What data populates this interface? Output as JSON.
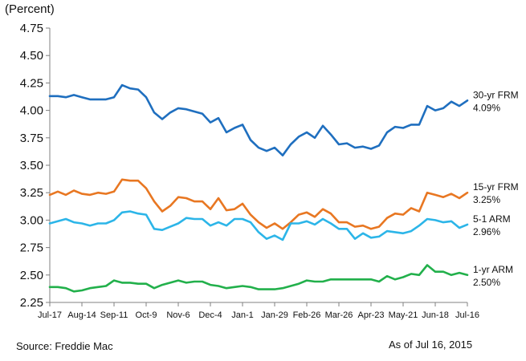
{
  "chart_data": {
    "type": "line",
    "ylabel": "(Percent)",
    "source": "Source: Freddie Mac",
    "as_of": "As of Jul 16, 2015",
    "ylim": [
      2.25,
      4.75
    ],
    "yticks": [
      "4.75",
      "4.50",
      "4.25",
      "4.00",
      "3.75",
      "3.50",
      "3.25",
      "3.00",
      "2.75",
      "2.50",
      "2.25"
    ],
    "xticks": [
      "Jul-17",
      "Aug-14",
      "Sep-11",
      "Oct-9",
      "Nov-6",
      "Dec-4",
      "Jan-1",
      "Jan-29",
      "Feb-26",
      "Mar-26",
      "Apr-23",
      "May-21",
      "Jun-18",
      "Jul-16"
    ],
    "grid": false,
    "series": [
      {
        "name": "30-yr FRM",
        "end_label": "4.09%",
        "color": "#1f6fbf",
        "values": [
          4.13,
          4.13,
          4.12,
          4.14,
          4.12,
          4.1,
          4.1,
          4.1,
          4.12,
          4.23,
          4.2,
          4.19,
          4.12,
          3.98,
          3.92,
          3.98,
          4.02,
          4.01,
          3.99,
          3.97,
          3.89,
          3.93,
          3.8,
          3.84,
          3.87,
          3.73,
          3.66,
          3.63,
          3.66,
          3.59,
          3.69,
          3.76,
          3.8,
          3.75,
          3.86,
          3.78,
          3.69,
          3.7,
          3.66,
          3.67,
          3.65,
          3.68,
          3.8,
          3.85,
          3.84,
          3.87,
          3.87,
          4.04,
          4.0,
          4.02,
          4.08,
          4.04,
          4.09
        ]
      },
      {
        "name": "15-yr FRM",
        "end_label": "3.25%",
        "color": "#e87722",
        "values": [
          3.23,
          3.26,
          3.23,
          3.27,
          3.24,
          3.23,
          3.25,
          3.24,
          3.26,
          3.37,
          3.36,
          3.36,
          3.29,
          3.17,
          3.08,
          3.13,
          3.21,
          3.2,
          3.17,
          3.17,
          3.1,
          3.2,
          3.09,
          3.1,
          3.15,
          3.05,
          2.98,
          2.93,
          2.97,
          2.92,
          2.98,
          3.05,
          3.07,
          3.03,
          3.1,
          3.06,
          2.98,
          2.98,
          2.94,
          2.95,
          2.92,
          2.94,
          3.02,
          3.06,
          3.05,
          3.11,
          3.08,
          3.25,
          3.23,
          3.21,
          3.24,
          3.2,
          3.25
        ]
      },
      {
        "name": "5-1 ARM",
        "end_label": "2.96%",
        "color": "#2cb5e8",
        "values": [
          2.97,
          2.99,
          3.01,
          2.98,
          2.97,
          2.95,
          2.97,
          2.97,
          3.0,
          3.07,
          3.08,
          3.06,
          3.05,
          2.92,
          2.91,
          2.94,
          2.97,
          3.02,
          3.01,
          3.01,
          2.95,
          2.98,
          2.95,
          3.01,
          3.01,
          2.98,
          2.89,
          2.83,
          2.86,
          2.82,
          2.97,
          2.97,
          2.99,
          2.96,
          3.01,
          2.97,
          2.92,
          2.92,
          2.83,
          2.88,
          2.84,
          2.85,
          2.9,
          2.89,
          2.88,
          2.9,
          2.95,
          3.01,
          3.0,
          2.98,
          2.99,
          2.93,
          2.96
        ]
      },
      {
        "name": "1-yr ARM",
        "end_label": "2.50%",
        "color": "#22b04b",
        "values": [
          2.39,
          2.39,
          2.38,
          2.35,
          2.36,
          2.38,
          2.39,
          2.4,
          2.45,
          2.43,
          2.43,
          2.42,
          2.42,
          2.38,
          2.41,
          2.43,
          2.45,
          2.43,
          2.44,
          2.44,
          2.41,
          2.4,
          2.38,
          2.39,
          2.4,
          2.39,
          2.37,
          2.37,
          2.37,
          2.38,
          2.4,
          2.42,
          2.45,
          2.44,
          2.44,
          2.46,
          2.46,
          2.46,
          2.46,
          2.46,
          2.46,
          2.44,
          2.49,
          2.46,
          2.48,
          2.51,
          2.5,
          2.59,
          2.53,
          2.53,
          2.5,
          2.52,
          2.5
        ]
      }
    ]
  }
}
